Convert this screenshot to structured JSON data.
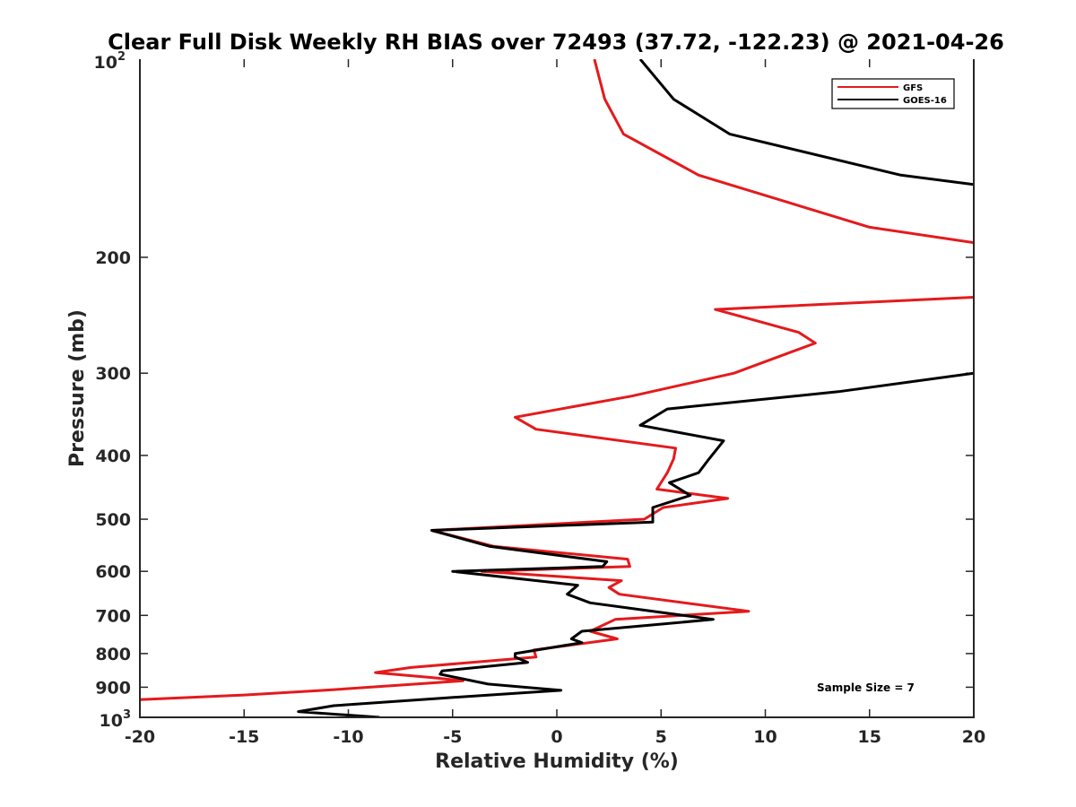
{
  "chart_data": {
    "type": "line",
    "title": "Clear Full Disk Weekly RH BIAS over 72493 (37.72, -122.23) @ 2021-04-26",
    "xlabel": "Relative Humidity (%)",
    "ylabel": "Pressure (mb)",
    "xlim": [
      -20,
      20
    ],
    "ylim": [
      100,
      1000
    ],
    "yscale": "log",
    "yreversed": true,
    "x_ticks": [
      -20,
      -15,
      -10,
      -5,
      0,
      5,
      10,
      15,
      20
    ],
    "x_tick_labels": [
      "-20",
      "-15",
      "-10",
      "-5",
      "0",
      "5",
      "10",
      "15",
      "20"
    ],
    "y_ticks": [
      200,
      300,
      400,
      500,
      600,
      700,
      800,
      900
    ],
    "y_tick_labels": [
      "200",
      "300",
      "400",
      "500",
      "600",
      "700",
      "800",
      "900"
    ],
    "y_end_labels": {
      "top_base": "10",
      "top_exp": "2",
      "bottom_base": "10",
      "bottom_exp": "3"
    },
    "legend_position": "top-right",
    "annotation": "Sample Size = 7",
    "series": [
      {
        "name": "GFS",
        "color": "#e41a1c",
        "points": [
          [
            1.8,
            100
          ],
          [
            2.3,
            115
          ],
          [
            3.2,
            130
          ],
          [
            6.8,
            150
          ],
          [
            15.0,
            180
          ],
          [
            20.0,
            190
          ],
          [
            null,
            null
          ],
          [
            20.0,
            230
          ],
          [
            7.6,
            240
          ],
          [
            11.6,
            260
          ],
          [
            12.4,
            270
          ],
          [
            8.5,
            300
          ],
          [
            3.6,
            325
          ],
          [
            -2.0,
            350
          ],
          [
            -1.0,
            365
          ],
          [
            5.7,
            390
          ],
          [
            5.6,
            405
          ],
          [
            5.3,
            425
          ],
          [
            4.8,
            450
          ],
          [
            8.2,
            465
          ],
          [
            5.1,
            480
          ],
          [
            4.2,
            500
          ],
          [
            -6.0,
            520
          ],
          [
            -3.0,
            550
          ],
          [
            3.4,
            575
          ],
          [
            3.5,
            590
          ],
          [
            -3.6,
            600
          ],
          [
            3.1,
            620
          ],
          [
            2.5,
            635
          ],
          [
            3.0,
            650
          ],
          [
            9.2,
            690
          ],
          [
            2.8,
            710
          ],
          [
            1.6,
            740
          ],
          [
            2.9,
            760
          ],
          [
            -1.1,
            790
          ],
          [
            -1.0,
            810
          ],
          [
            -7.0,
            840
          ],
          [
            -8.7,
            855
          ],
          [
            -6.0,
            870
          ],
          [
            -4.5,
            880
          ],
          [
            -11.2,
            910
          ],
          [
            -15.0,
            925
          ],
          [
            -20.0,
            940
          ]
        ]
      },
      {
        "name": "GOES-16",
        "color": "#000000",
        "points": [
          [
            4.0,
            100
          ],
          [
            5.6,
            115
          ],
          [
            8.3,
            130
          ],
          [
            16.5,
            150
          ],
          [
            20.0,
            155
          ],
          [
            null,
            null
          ],
          [
            20.0,
            300
          ],
          [
            13.5,
            320
          ],
          [
            5.3,
            340
          ],
          [
            4.0,
            360
          ],
          [
            8.0,
            380
          ],
          [
            7.3,
            405
          ],
          [
            6.8,
            425
          ],
          [
            5.4,
            440
          ],
          [
            6.4,
            460
          ],
          [
            4.6,
            480
          ],
          [
            4.6,
            505
          ],
          [
            -6.0,
            520
          ],
          [
            -3.2,
            550
          ],
          [
            2.4,
            580
          ],
          [
            2.2,
            590
          ],
          [
            -5.0,
            600
          ],
          [
            1.0,
            630
          ],
          [
            0.5,
            650
          ],
          [
            1.6,
            670
          ],
          [
            7.5,
            710
          ],
          [
            1.2,
            740
          ],
          [
            0.7,
            760
          ],
          [
            1.2,
            770
          ],
          [
            -2.0,
            800
          ],
          [
            -2.0,
            810
          ],
          [
            -1.4,
            825
          ],
          [
            -5.5,
            850
          ],
          [
            -5.6,
            860
          ],
          [
            -3.3,
            890
          ],
          [
            0.2,
            910
          ],
          [
            -5.5,
            935
          ],
          [
            -10.7,
            960
          ],
          [
            -12.4,
            980
          ],
          [
            -8.5,
            1000
          ]
        ]
      }
    ]
  }
}
